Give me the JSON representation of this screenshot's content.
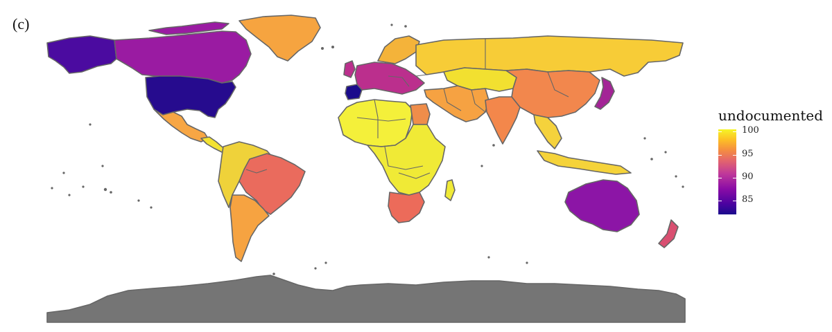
{
  "panel_label": "(c)",
  "legend": {
    "title": "undocumented",
    "ticks": [
      "100",
      "95",
      "90",
      "85"
    ],
    "scale_min": 82,
    "scale_max": 100.5,
    "palette": [
      "#1a0b8c",
      "#4a02a0",
      "#8a0ca6",
      "#c0399a",
      "#e5676a",
      "#f58f3f",
      "#fdc025",
      "#f5f527"
    ]
  },
  "colors": {
    "no_data": "#757575",
    "border": "#666666"
  },
  "regions": [
    {
      "name": "usa",
      "color": "#260b8e"
    },
    {
      "name": "alaska",
      "color": "#4b0ba0"
    },
    {
      "name": "canada",
      "color": "#9a1ba2"
    },
    {
      "name": "greenland",
      "color": "#f6a440"
    },
    {
      "name": "mexico",
      "color": "#f7a644"
    },
    {
      "name": "central-america",
      "color": "#f3e232"
    },
    {
      "name": "brazil",
      "color": "#ea6b5d"
    },
    {
      "name": "south-america-north",
      "color": "#efd23a"
    },
    {
      "name": "argentina",
      "color": "#f6a341"
    },
    {
      "name": "spain",
      "color": "#1a0b8c"
    },
    {
      "name": "west-europe",
      "color": "#bb2f8d"
    },
    {
      "name": "scandinavia",
      "color": "#f4b33a"
    },
    {
      "name": "russia",
      "color": "#f7cc37"
    },
    {
      "name": "central-asia",
      "color": "#f2e030"
    },
    {
      "name": "china",
      "color": "#f2874d"
    },
    {
      "name": "middle-east",
      "color": "#f6a242"
    },
    {
      "name": "india",
      "color": "#f3874b"
    },
    {
      "name": "southeast-asia",
      "color": "#f5d23c"
    },
    {
      "name": "japan",
      "color": "#a32496"
    },
    {
      "name": "north-africa",
      "color": "#f4f03a"
    },
    {
      "name": "egypt",
      "color": "#ef8d4a"
    },
    {
      "name": "central-africa",
      "color": "#f0ea36"
    },
    {
      "name": "south-africa",
      "color": "#ec6b5a"
    },
    {
      "name": "australia",
      "color": "#8c15a6"
    },
    {
      "name": "new-zealand",
      "color": "#d94f71"
    },
    {
      "name": "indonesia",
      "color": "#f5d33a"
    },
    {
      "name": "antarctica",
      "color": "#757575"
    }
  ]
}
